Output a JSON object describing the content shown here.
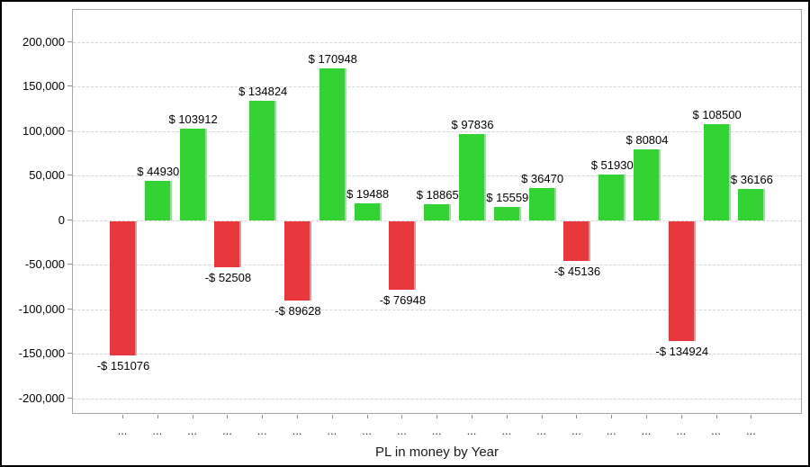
{
  "window": {
    "background": "#FFFFFF",
    "border_color": "#000000"
  },
  "chart_data": {
    "type": "bar",
    "title": "",
    "xlabel": "PL in money by Year",
    "ylabel": "",
    "categories": [
      "...",
      "...",
      "...",
      "...",
      "...",
      "...",
      "...",
      "...",
      "...",
      "...",
      "...",
      "...",
      "...",
      "...",
      "...",
      "...",
      "...",
      "...",
      "..."
    ],
    "values": [
      -151076,
      44930,
      103912,
      -52508,
      134824,
      -89628,
      170948,
      19488,
      -76948,
      18865,
      97836,
      15559,
      36470,
      -45136,
      51930,
      80804,
      -134924,
      108500,
      36166
    ],
    "bar_labels": [
      "-$ 151076",
      "$ 44930",
      "$ 103912",
      "-$ 52508",
      "$ 134824",
      "-$ 89628",
      "$ 170948",
      "$ 19488",
      "-$ 76948",
      "$ 18865",
      "$ 97836",
      "$ 15559",
      "$ 36470",
      "-$ 45136",
      "$ 51930",
      "$ 80804",
      "-$ 134924",
      "$ 108500",
      "$ 36166"
    ],
    "ylim": [
      -200000,
      200000
    ],
    "ytick_step": 50000,
    "yticks": [
      {
        "value": 200000,
        "label": "200,000"
      },
      {
        "value": 150000,
        "label": "150,000"
      },
      {
        "value": 100000,
        "label": "100,000"
      },
      {
        "value": 50000,
        "label": "50,000"
      },
      {
        "value": 0,
        "label": "0"
      },
      {
        "value": -50000,
        "label": "-50,000"
      },
      {
        "value": -100000,
        "label": "-100,000"
      },
      {
        "value": -150000,
        "label": "-150,000"
      },
      {
        "value": -200000,
        "label": "-200,000"
      }
    ],
    "grid": "horizontal-dashed",
    "legend": "none",
    "colors": {
      "positive": "#33D333",
      "negative": "#E8383E",
      "gridline": "#D4D4D4",
      "plot_border": "#A6A6A6",
      "tick": "#8A8A8A",
      "label_text": "#000000",
      "category_text": "#333333"
    }
  }
}
